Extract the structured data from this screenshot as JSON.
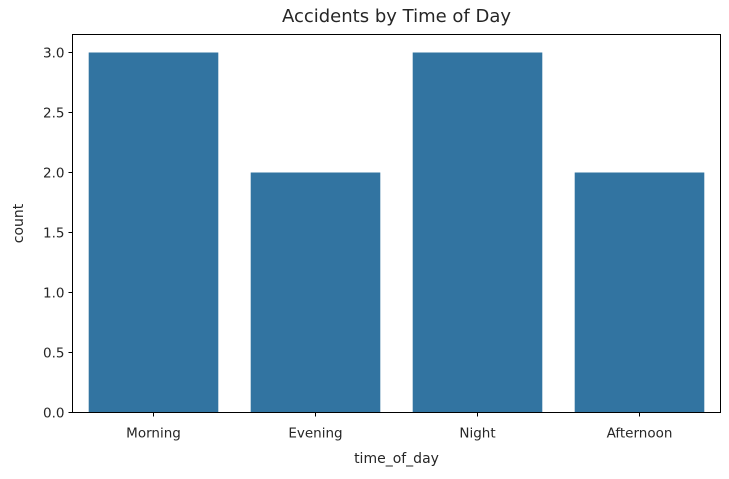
{
  "chart_data": {
    "type": "bar",
    "title": "Accidents by Time of Day",
    "xlabel": "time_of_day",
    "ylabel": "count",
    "categories": [
      "Morning",
      "Evening",
      "Night",
      "Afternoon"
    ],
    "values": [
      3,
      2,
      3,
      2
    ],
    "ylim": [
      0,
      3.15
    ],
    "yticks": [
      "0.0",
      "0.5",
      "1.0",
      "1.5",
      "2.0",
      "2.5",
      "3.0"
    ],
    "grid": false,
    "legend": "none",
    "bar_color": "#3274a1"
  }
}
